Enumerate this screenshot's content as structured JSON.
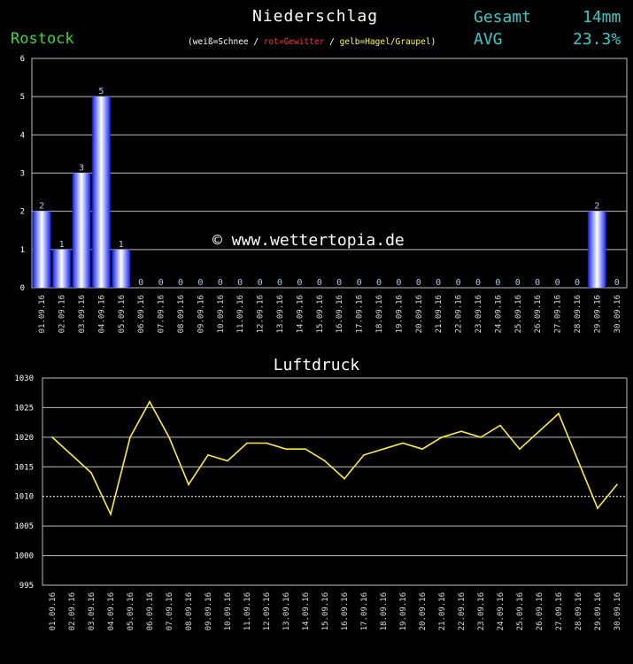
{
  "header": {
    "precip_title": "Niederschlag",
    "station": "Rostock",
    "legend_prefix": "(weiß=Schnee / ",
    "legend_thunder": "rot=Gewitter",
    "legend_mid": " / ",
    "legend_hail": "gelb=Hagel/Graupel",
    "legend_suffix": ")",
    "sum_label": "Gesamt",
    "sum_value": "14mm",
    "avg_label": "AVG",
    "avg_value": "23.3%",
    "pressure_title": "Luftdruck",
    "watermark": "© www.wettertopia.de"
  },
  "colors": {
    "background": "#000000",
    "grid": "#bbbbbb",
    "bar": "#2233ff",
    "line": "#ffee33",
    "station": "#33dd33",
    "stats": "#33cccc"
  },
  "chart_data": [
    {
      "type": "bar",
      "title": "Niederschlag",
      "categories": [
        "01.09.16",
        "02.09.16",
        "03.09.16",
        "04.09.16",
        "05.09.16",
        "06.09.16",
        "07.09.16",
        "08.09.16",
        "09.09.16",
        "10.09.16",
        "11.09.16",
        "12.09.16",
        "13.09.16",
        "14.09.16",
        "15.09.16",
        "16.09.16",
        "17.09.16",
        "18.09.16",
        "19.09.16",
        "20.09.16",
        "21.09.16",
        "22.09.16",
        "23.09.16",
        "24.09.16",
        "25.09.16",
        "26.09.16",
        "27.09.16",
        "28.09.16",
        "29.09.16",
        "30.09.16"
      ],
      "values": [
        2,
        1,
        3,
        5,
        1,
        0,
        0,
        0,
        0,
        0,
        0,
        0,
        0,
        0,
        0,
        0,
        0,
        0,
        0,
        0,
        0,
        0,
        0,
        0,
        0,
        0,
        0,
        0,
        2,
        0
      ],
      "ylim": [
        0,
        6
      ],
      "yticks": [
        0,
        1,
        2,
        3,
        4,
        5,
        6
      ],
      "grid": true
    },
    {
      "type": "line",
      "title": "Luftdruck",
      "categories": [
        "01.09.16",
        "02.09.16",
        "03.09.16",
        "04.09.16",
        "05.09.16",
        "06.09.16",
        "07.09.16",
        "08.09.16",
        "09.09.16",
        "10.09.16",
        "11.09.16",
        "12.09.16",
        "13.09.16",
        "14.09.16",
        "15.09.16",
        "16.09.16",
        "17.09.16",
        "18.09.16",
        "19.09.16",
        "20.09.16",
        "21.09.16",
        "22.09.16",
        "23.09.16",
        "24.09.16",
        "25.09.16",
        "26.09.16",
        "27.09.16",
        "28.09.16",
        "29.09.16",
        "30.09.16"
      ],
      "values": [
        1020,
        1017,
        1014,
        1007,
        1020,
        1026,
        1020,
        1012,
        1017,
        1016,
        1019,
        1019,
        1018,
        1018,
        1016,
        1013,
        1017,
        1018,
        1019,
        1018,
        1020,
        1021,
        1020,
        1022,
        1018,
        1021,
        1024,
        1016,
        1008,
        1012
      ],
      "ylim": [
        995,
        1030
      ],
      "yticks": [
        995,
        1000,
        1005,
        1010,
        1015,
        1020,
        1025,
        1030
      ],
      "reference_line": 1010,
      "grid": true
    }
  ]
}
